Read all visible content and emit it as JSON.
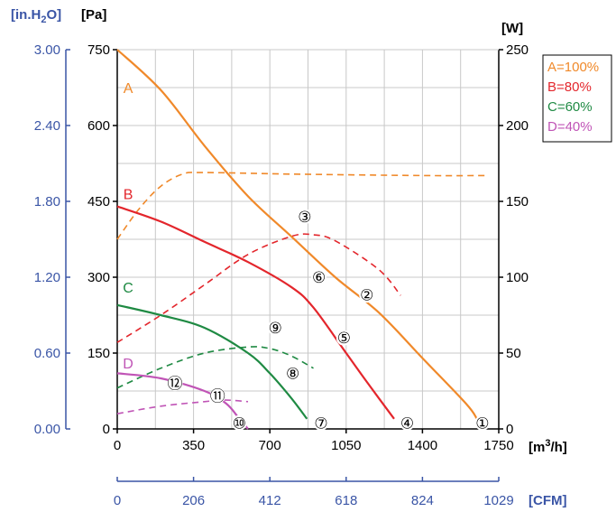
{
  "chart_data": {
    "type": "line",
    "x_axis": {
      "ticks": [
        "0",
        "350",
        "700",
        "1050",
        "1400",
        "1750"
      ],
      "range": [
        0,
        1750
      ],
      "label_parts": [
        "[m",
        "3",
        "/h]"
      ]
    },
    "x2_axis": {
      "ticks": [
        "0",
        "206",
        "412",
        "618",
        "824",
        "1029"
      ],
      "range": [
        0,
        1029
      ],
      "label": "[CFM]"
    },
    "y_axis": {
      "ticks": [
        "0",
        "150",
        "300",
        "450",
        "600",
        "750"
      ],
      "range": [
        0,
        750
      ],
      "label": "[Pa]"
    },
    "y2_axis": {
      "ticks": [
        "0.00",
        "0.60",
        "1.20",
        "1.80",
        "2.40",
        "3.00"
      ],
      "range": [
        0,
        3.0
      ],
      "label_parts": [
        "[in.H",
        "2",
        "O]"
      ]
    },
    "y3_axis": {
      "ticks": [
        "0",
        "50",
        "100",
        "150",
        "200",
        "250"
      ],
      "range": [
        0,
        250
      ],
      "label": "[W]"
    },
    "grid": true,
    "legend_position": "top-right",
    "legend": [
      "A=100%",
      "B=80%",
      "C=60%",
      "D=40%"
    ],
    "series": [
      {
        "name": "A",
        "color": "#f0892a",
        "pressure": [
          [
            0,
            750
          ],
          [
            200,
            670
          ],
          [
            400,
            560
          ],
          [
            600,
            460
          ],
          [
            800,
            380
          ],
          [
            1000,
            300
          ],
          [
            1200,
            230
          ],
          [
            1400,
            140
          ],
          [
            1600,
            50
          ],
          [
            1650,
            20
          ]
        ],
        "power": [
          [
            0,
            125
          ],
          [
            100,
            145
          ],
          [
            200,
            160
          ],
          [
            300,
            168
          ],
          [
            400,
            169
          ],
          [
            800,
            168
          ],
          [
            1400,
            167
          ],
          [
            1700,
            167
          ]
        ]
      },
      {
        "name": "B",
        "color": "#e3262c",
        "pressure": [
          [
            0,
            440
          ],
          [
            200,
            410
          ],
          [
            400,
            370
          ],
          [
            600,
            330
          ],
          [
            800,
            280
          ],
          [
            900,
            240
          ],
          [
            1050,
            150
          ],
          [
            1150,
            90
          ],
          [
            1270,
            20
          ]
        ],
        "power": [
          [
            0,
            57
          ],
          [
            200,
            75
          ],
          [
            400,
            95
          ],
          [
            600,
            115
          ],
          [
            800,
            127
          ],
          [
            900,
            128
          ],
          [
            1000,
            124
          ],
          [
            1200,
            105
          ],
          [
            1300,
            88
          ]
        ]
      },
      {
        "name": "C",
        "color": "#1f8a43",
        "pressure": [
          [
            0,
            245
          ],
          [
            200,
            225
          ],
          [
            400,
            200
          ],
          [
            600,
            150
          ],
          [
            700,
            110
          ],
          [
            800,
            60
          ],
          [
            870,
            20
          ]
        ],
        "power": [
          [
            0,
            27
          ],
          [
            200,
            40
          ],
          [
            400,
            50
          ],
          [
            600,
            54
          ],
          [
            700,
            53
          ],
          [
            800,
            48
          ],
          [
            900,
            40
          ]
        ]
      },
      {
        "name": "D",
        "color": "#c054b6",
        "pressure": [
          [
            0,
            110
          ],
          [
            200,
            100
          ],
          [
            400,
            75
          ],
          [
            500,
            50
          ],
          [
            560,
            20
          ],
          [
            600,
            0
          ]
        ],
        "power": [
          [
            0,
            10
          ],
          [
            200,
            15
          ],
          [
            400,
            18
          ],
          [
            500,
            19
          ],
          [
            600,
            18
          ]
        ]
      }
    ],
    "curve_labels": [
      {
        "text": "A",
        "series": 0,
        "x": 50,
        "y": 675
      },
      {
        "text": "B",
        "series": 1,
        "x": 50,
        "y": 465
      },
      {
        "text": "C",
        "series": 2,
        "x": 50,
        "y": 280
      },
      {
        "text": "D",
        "series": 3,
        "x": 50,
        "y": 130
      }
    ],
    "markers": [
      {
        "text": "①",
        "x": 1675,
        "y": 12
      },
      {
        "text": "②",
        "x": 1145,
        "y": 265
      },
      {
        "text": "③",
        "x": 860,
        "y": 420
      },
      {
        "text": "④",
        "x": 1330,
        "y": 12
      },
      {
        "text": "⑤",
        "x": 1040,
        "y": 180
      },
      {
        "text": "⑥",
        "x": 925,
        "y": 300
      },
      {
        "text": "⑦",
        "x": 935,
        "y": 12
      },
      {
        "text": "⑧",
        "x": 805,
        "y": 110
      },
      {
        "text": "⑨",
        "x": 725,
        "y": 200
      },
      {
        "text": "⑩",
        "x": 560,
        "y": 12
      },
      {
        "text": "⑪",
        "x": 460,
        "y": 65
      },
      {
        "text": "⑫",
        "x": 265,
        "y": 90
      }
    ]
  }
}
